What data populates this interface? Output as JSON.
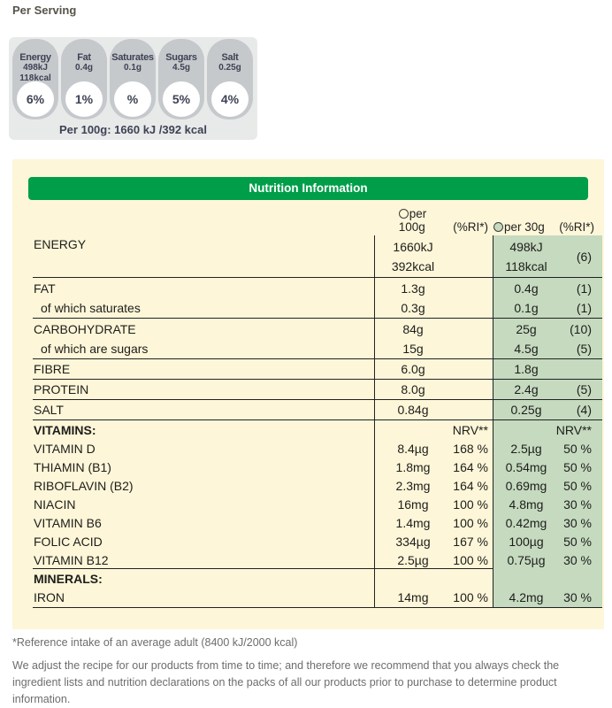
{
  "page": {
    "per_serving_heading": "Per Serving"
  },
  "summary": {
    "badges": [
      {
        "name": "Energy",
        "values": [
          "498kJ",
          "118kcal"
        ],
        "percent": "6%"
      },
      {
        "name": "Fat",
        "values": [
          "0.4g"
        ],
        "percent": "1%"
      },
      {
        "name": "Saturates",
        "values": [
          "0.1g"
        ],
        "percent": "%"
      },
      {
        "name": "Sugars",
        "values": [
          "4.5g"
        ],
        "percent": "5%"
      },
      {
        "name": "Salt",
        "values": [
          "0.25g"
        ],
        "percent": "4%"
      }
    ],
    "per_100g_note": "Per 100g: 1660 kJ /392 kcal"
  },
  "nutrition_table": {
    "title": "Nutrition Information",
    "header": {
      "per100g_line1": "per",
      "per100g_line2": "100g",
      "ri_100g": "(%RI*)",
      "per30g": "per 30g",
      "ri_30g": "(%RI*)"
    },
    "rows": [
      {
        "label": "ENERGY",
        "v100": [
          "1660kJ",
          "392kcal"
        ],
        "ri100": "",
        "v30": [
          "498kJ",
          "118kcal"
        ],
        "ri30": "(6)",
        "tall": true,
        "divider": true
      },
      {
        "label": "FAT",
        "v100": "1.3g",
        "ri100": "",
        "v30": "0.4g",
        "ri30": "(1)"
      },
      {
        "label": "of which saturates",
        "indent": true,
        "v100": "0.3g",
        "ri100": "",
        "v30": "0.1g",
        "ri30": "(1)",
        "divider": true
      },
      {
        "label": "CARBOHYDRATE",
        "v100": "84g",
        "ri100": "",
        "v30": "25g",
        "ri30": "(10)"
      },
      {
        "label": "of which are sugars",
        "indent": true,
        "v100": "15g",
        "ri100": "",
        "v30": "4.5g",
        "ri30": "(5)",
        "divider": true
      },
      {
        "label": "FIBRE",
        "v100": "6.0g",
        "ri100": "",
        "v30": "1.8g",
        "ri30": "",
        "divider": true
      },
      {
        "label": "PROTEIN",
        "v100": "8.0g",
        "ri100": "",
        "v30": "2.4g",
        "ri30": "(5)",
        "divider": true
      },
      {
        "label": "SALT",
        "v100": "0.84g",
        "ri100": "",
        "v30": "0.25g",
        "ri30": "(4)",
        "divider": true
      },
      {
        "label": "VITAMINS:",
        "bold": true,
        "v100": "",
        "ri100": "NRV**",
        "v30": "",
        "ri30": "NRV**",
        "vit": true
      },
      {
        "label": "VITAMIN D",
        "v100": "8.4µg",
        "ri100": "168 %",
        "v30": "2.5µg",
        "ri30": "50 %",
        "vit": true
      },
      {
        "label": "THIAMIN (B1)",
        "v100": "1.8mg",
        "ri100": "164 %",
        "v30": "0.54mg",
        "ri30": "50 %",
        "vit": true
      },
      {
        "label": "RIBOFLAVIN (B2)",
        "v100": "2.3mg",
        "ri100": "164 %",
        "v30": "0.69mg",
        "ri30": "50 %",
        "vit": true
      },
      {
        "label": "NIACIN",
        "v100": "16mg",
        "ri100": "100 %",
        "v30": "4.8mg",
        "ri30": "30 %",
        "vit": true
      },
      {
        "label": "VITAMIN B6",
        "v100": "1.4mg",
        "ri100": "100 %",
        "v30": "0.42mg",
        "ri30": "30 %",
        "vit": true
      },
      {
        "label": "FOLIC ACID",
        "v100": "334µg",
        "ri100": "167 %",
        "v30": "100µg",
        "ri30": "50 %",
        "vit": true
      },
      {
        "label": "VITAMIN B12",
        "v100": "2.5µg",
        "ri100": "100 %",
        "v30": "0.75µg",
        "ri30": "30 %",
        "vit": true,
        "divider": true
      },
      {
        "label": "MINERALS:",
        "bold": true,
        "v100": "",
        "ri100": "",
        "v30": "",
        "ri30": "",
        "vit": true
      },
      {
        "label": "IRON",
        "v100": "14mg",
        "ri100": "100 %",
        "v30": "4.2mg",
        "ri30": "30 %",
        "divider": true
      }
    ]
  },
  "footnotes": {
    "reference": "*Reference intake of an average adult (8400 kJ/2000 kcal)",
    "disclaimer": "We adjust the recipe for our products from time to time; and therefore we recommend that you always check the ingredient lists and nutrition declarations on the packs of all our products prior to purchase to determine product information."
  },
  "colors": {
    "header_green": "#009E49",
    "column_green": "#C5DABF",
    "panel_cream": "#FDF6D8",
    "badge_gray": "#C6C9CC",
    "badge_panel_gray": "#E8EAEA",
    "badge_text_navy": "#3E4254"
  }
}
